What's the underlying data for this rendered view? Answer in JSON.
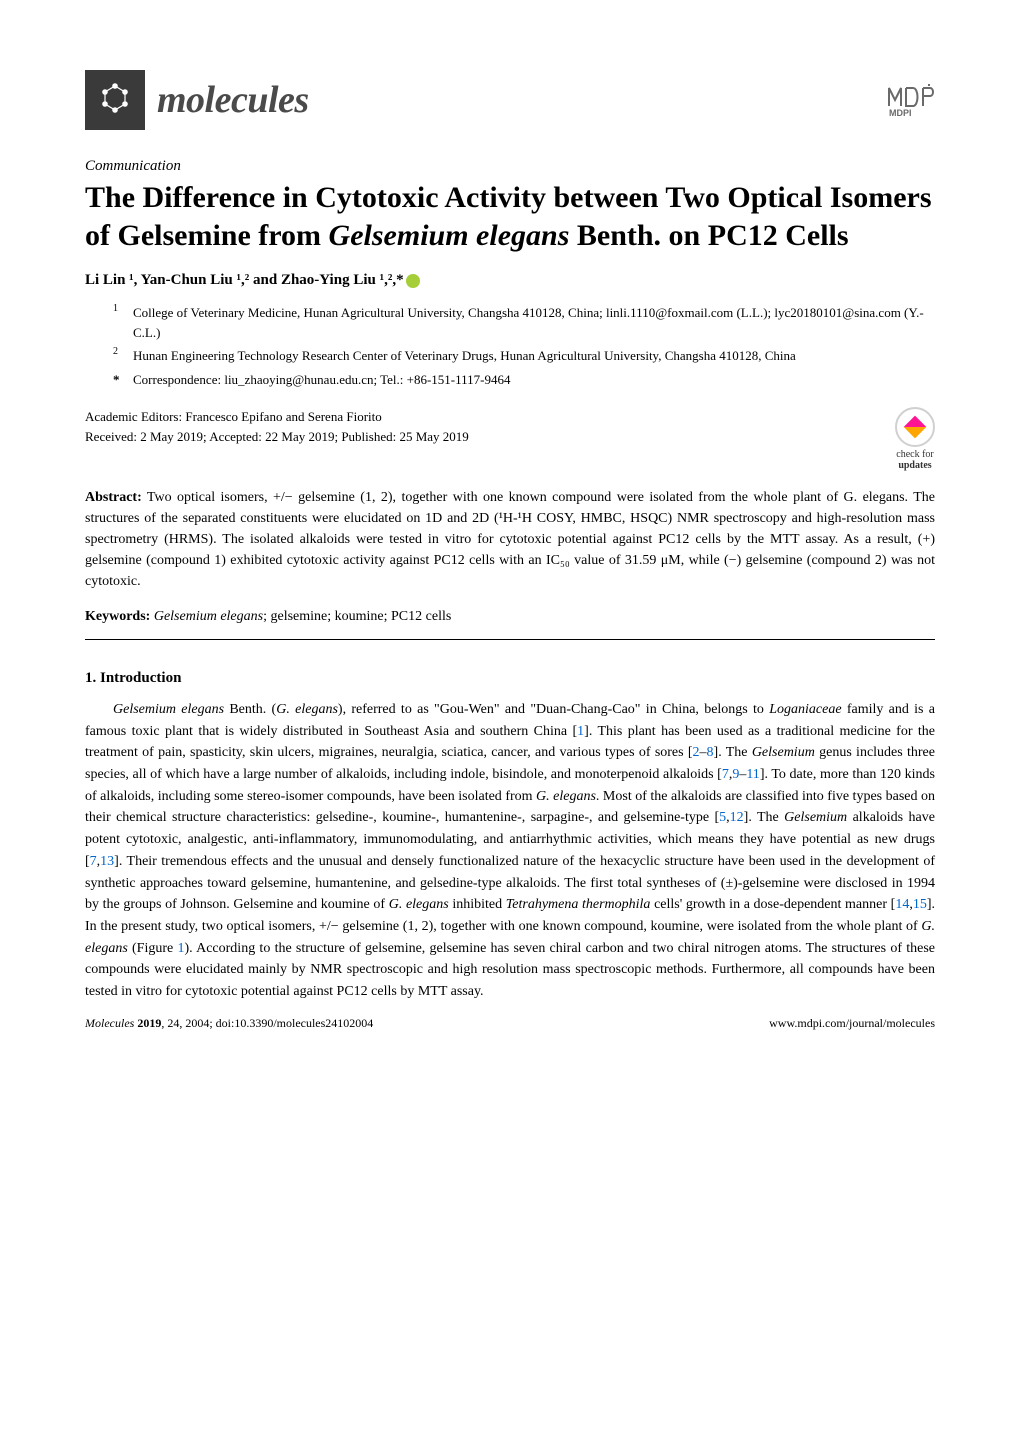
{
  "header": {
    "journal_name": "molecules",
    "publisher": "MDPI"
  },
  "article_type": "Communication",
  "title_parts": {
    "p1": "The Difference in Cytotoxic Activity between Two Optical Isomers of Gelsemine from ",
    "p2_italic": "Gelsemium elegans",
    "p3": " Benth. on PC12 Cells"
  },
  "authors": "Li Lin ¹, Yan-Chun Liu ¹,² and Zhao-Ying Liu ¹,²,*",
  "affiliations": [
    {
      "num": "1",
      "text": "College of Veterinary Medicine, Hunan Agricultural University, Changsha 410128, China; linli.1110@foxmail.com (L.L.); lyc20180101@sina.com (Y.-C.L.)"
    },
    {
      "num": "2",
      "text": "Hunan Engineering Technology Research Center of Veterinary Drugs, Hunan Agricultural University, Changsha 410128, China"
    }
  ],
  "correspondence": {
    "star": "*",
    "text": "Correspondence: liu_zhaoying@hunau.edu.cn; Tel.: +86-151-1117-9464"
  },
  "editors": "Academic Editors: Francesco Epifano and Serena Fiorito",
  "dates": "Received: 2 May 2019; Accepted: 22 May 2019; Published: 25 May 2019",
  "check_updates": {
    "l1": "check for",
    "l2": "updates"
  },
  "abstract": {
    "label": "Abstract:",
    "text": " Two optical isomers, +/− gelsemine (1, 2), together with one known compound were isolated from the whole plant of G. elegans. The structures of the separated constituents were elucidated on 1D and 2D (¹H-¹H COSY, HMBC, HSQC) NMR spectroscopy and high-resolution mass spectrometry (HRMS). The isolated alkaloids were tested in vitro for cytotoxic potential against PC12 cells by the MTT assay. As a result, (+) gelsemine (compound 1) exhibited cytotoxic activity against PC12 cells with an IC₅₀ value of 31.59 μM, while (−) gelsemine (compound 2) was not cytotoxic."
  },
  "keywords": {
    "label": "Keywords:",
    "italic": " Gelsemium elegans",
    "rest": "; gelsemine; koumine; PC12 cells"
  },
  "section1": {
    "heading": "1. Introduction",
    "paragraph_parts": [
      {
        "t": "Gelsemium elegans",
        "italic": true
      },
      {
        "t": " Benth. ("
      },
      {
        "t": "G. elegans",
        "italic": true
      },
      {
        "t": "), referred to as \"Gou-Wen\" and \"Duan-Chang-Cao\" in China, belongs to "
      },
      {
        "t": "Loganiaceae",
        "italic": true
      },
      {
        "t": " family and is a famous toxic plant that is widely distributed in Southeast Asia and southern China ["
      },
      {
        "t": "1",
        "ref": true
      },
      {
        "t": "]. This plant has been used as a traditional medicine for the treatment of pain, spasticity, skin ulcers, migraines, neuralgia, sciatica, cancer, and various types of sores ["
      },
      {
        "t": "2",
        "ref": true
      },
      {
        "t": "–"
      },
      {
        "t": "8",
        "ref": true
      },
      {
        "t": "]. The "
      },
      {
        "t": "Gelsemium",
        "italic": true
      },
      {
        "t": " genus includes three species, all of which have a large number of alkaloids, including indole, bisindole, and monoterpenoid alkaloids ["
      },
      {
        "t": "7",
        "ref": true
      },
      {
        "t": ","
      },
      {
        "t": "9",
        "ref": true
      },
      {
        "t": "–"
      },
      {
        "t": "11",
        "ref": true
      },
      {
        "t": "]. To date, more than 120 kinds of alkaloids, including some stereo-isomer compounds, have been isolated from "
      },
      {
        "t": "G. elegans",
        "italic": true
      },
      {
        "t": ". Most of the alkaloids are classified into five types based on their chemical structure characteristics: gelsedine-, koumine-, humantenine-, sarpagine-, and gelsemine-type ["
      },
      {
        "t": "5",
        "ref": true
      },
      {
        "t": ","
      },
      {
        "t": "12",
        "ref": true
      },
      {
        "t": "]. The "
      },
      {
        "t": "Gelsemium",
        "italic": true
      },
      {
        "t": " alkaloids have potent cytotoxic, analgestic, anti-inflammatory, immunomodulating, and antiarrhythmic activities, which means they have potential as new drugs ["
      },
      {
        "t": "7",
        "ref": true
      },
      {
        "t": ","
      },
      {
        "t": "13",
        "ref": true
      },
      {
        "t": "]. Their tremendous effects and the unusual and densely functionalized nature of the hexacyclic structure have been used in the development of synthetic approaches toward gelsemine, humantenine, and gelsedine-type alkaloids. The first total syntheses of (±)-gelsemine were disclosed in 1994 by the groups of Johnson. Gelsemine and koumine of "
      },
      {
        "t": "G. elegans",
        "italic": true
      },
      {
        "t": " inhibited "
      },
      {
        "t": "Tetrahymena thermophila",
        "italic": true
      },
      {
        "t": " cells' growth in a dose-dependent manner ["
      },
      {
        "t": "14",
        "ref": true
      },
      {
        "t": ","
      },
      {
        "t": "15",
        "ref": true
      },
      {
        "t": "]. In the present study, two optical isomers, +/− gelsemine (1, 2), together with one known compound, koumine, were isolated from the whole plant of "
      },
      {
        "t": "G. elegans",
        "italic": true
      },
      {
        "t": " (Figure "
      },
      {
        "t": "1",
        "ref": true
      },
      {
        "t": "). According to the structure of gelsemine, gelsemine has seven chiral carbon and two chiral nitrogen atoms. The structures of these compounds were elucidated mainly by NMR spectroscopic and high resolution mass spectroscopic methods. Furthermore, all compounds have been tested in vitro for cytotoxic potential against PC12 cells by MTT assay."
      }
    ]
  },
  "footer": {
    "left_italic": "Molecules ",
    "left_bold": "2019",
    "left_rest": ", 24, 2004; doi:10.3390/molecules24102004",
    "right": "www.mdpi.com/journal/molecules"
  },
  "colors": {
    "ref_color": "#0066cc",
    "orcid_color": "#a6ce39",
    "logo_bg": "#3a3a3a",
    "text_color": "#000000"
  }
}
